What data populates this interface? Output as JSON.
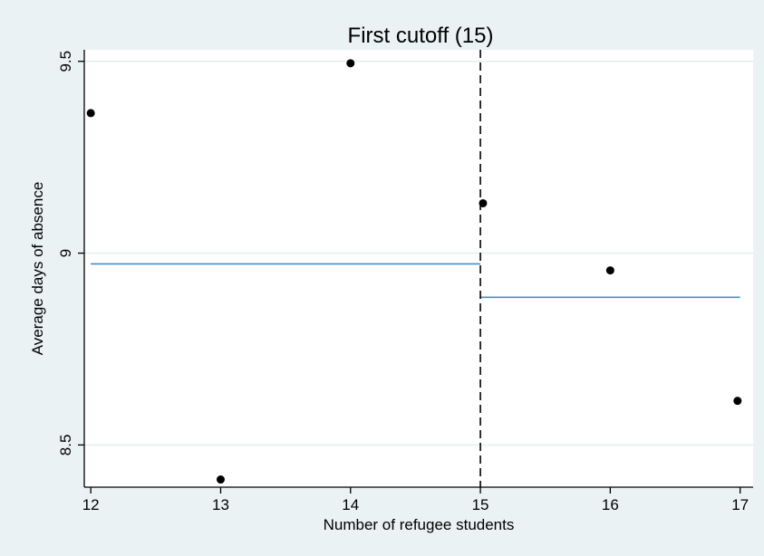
{
  "chart_data": {
    "type": "scatter",
    "title": "First cutoff (15)",
    "xlabel": "Number of refugee students",
    "ylabel": "Average days of absence",
    "xlim": [
      11.95,
      17.1
    ],
    "ylim": [
      8.39,
      9.53
    ],
    "x_ticks": [
      12,
      13,
      14,
      15,
      16,
      17
    ],
    "x_tick_labels": [
      "12",
      "13",
      "14",
      "15",
      "16",
      "17"
    ],
    "y_ticks": [
      8.5,
      9,
      9.5
    ],
    "y_tick_labels": [
      "8.5",
      "9",
      "9.5"
    ],
    "grid": true,
    "legend": "none",
    "points": [
      {
        "x": 12,
        "y": 9.365
      },
      {
        "x": 13,
        "y": 8.41
      },
      {
        "x": 14,
        "y": 9.495
      },
      {
        "x": 15.02,
        "y": 9.13
      },
      {
        "x": 16,
        "y": 8.955
      },
      {
        "x": 16.98,
        "y": 8.615
      }
    ],
    "fit_lines": [
      {
        "x": [
          12,
          15
        ],
        "y": [
          8.972,
          8.972
        ]
      },
      {
        "x": [
          15,
          17
        ],
        "y": [
          8.885,
          8.885
        ]
      }
    ],
    "cutoff": {
      "x": 15,
      "style": "dashed"
    },
    "colors": {
      "background": "#eaf2f3",
      "plot_area": "#ffffff",
      "points": "#000000",
      "fit_line": "#3d8fd0",
      "cutoff_line": "#000000",
      "grid": "#e6eeee"
    }
  }
}
